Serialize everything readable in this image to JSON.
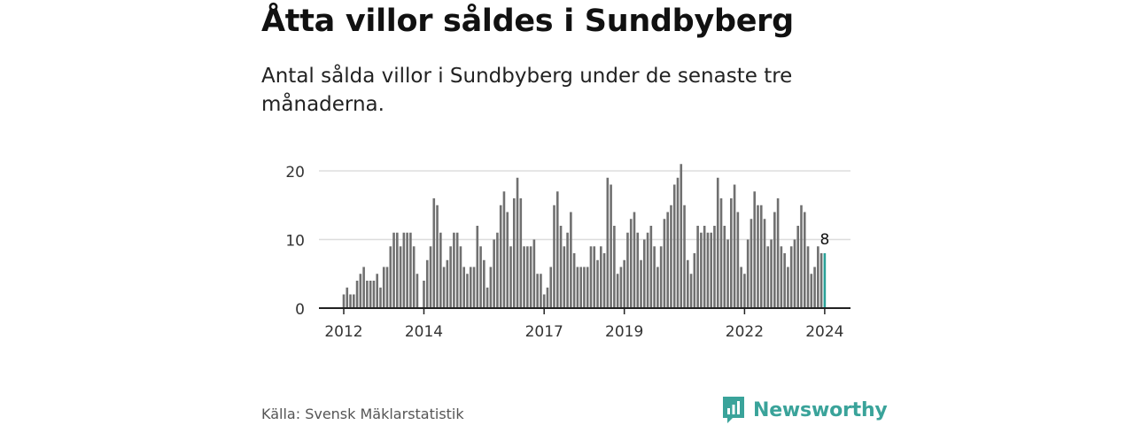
{
  "title": "Åtta villor såldes i Sundbyberg",
  "subtitle": "Antal sålda villor i Sundbyberg under de senaste tre månaderna.",
  "source": "Källa: Svensk Mäklarstatistik",
  "brand": "Newsworthy",
  "colors": {
    "bar": "#707070",
    "highlight": "#2aa198",
    "grid": "#dddddd",
    "axis": "#222222",
    "brand": "#3aa39a"
  },
  "chart_data": {
    "type": "bar",
    "title": "Åtta villor såldes i Sundbyberg",
    "xlabel": "",
    "ylabel": "",
    "ylim": [
      0,
      20
    ],
    "yticks": [
      0,
      10,
      20
    ],
    "xticks": [
      "2012",
      "2014",
      "2017",
      "2019",
      "2022",
      "2024"
    ],
    "xtick_index": [
      0,
      24,
      60,
      84,
      120,
      144
    ],
    "values": [
      2,
      3,
      2,
      2,
      4,
      5,
      6,
      4,
      4,
      4,
      5,
      3,
      6,
      6,
      9,
      11,
      11,
      9,
      11,
      11,
      11,
      9,
      5,
      0,
      4,
      7,
      9,
      16,
      15,
      11,
      6,
      7,
      9,
      11,
      11,
      9,
      6,
      5,
      6,
      6,
      12,
      9,
      7,
      3,
      6,
      10,
      11,
      15,
      17,
      14,
      9,
      16,
      19,
      16,
      9,
      9,
      9,
      10,
      5,
      5,
      2,
      3,
      6,
      15,
      17,
      12,
      9,
      11,
      14,
      8,
      6,
      6,
      6,
      6,
      9,
      9,
      7,
      9,
      8,
      19,
      18,
      12,
      5,
      6,
      7,
      11,
      13,
      14,
      11,
      7,
      10,
      11,
      12,
      9,
      6,
      9,
      13,
      14,
      15,
      18,
      19,
      21,
      15,
      7,
      5,
      8,
      12,
      11,
      12,
      11,
      11,
      12,
      19,
      16,
      12,
      10,
      16,
      18,
      14,
      6,
      5,
      10,
      13,
      17,
      15,
      15,
      13,
      9,
      10,
      14,
      16,
      9,
      8,
      6,
      9,
      10,
      12,
      15,
      14,
      9,
      5,
      6,
      9,
      8,
      8
    ],
    "highlight_index": 144,
    "highlight_label": "8"
  }
}
